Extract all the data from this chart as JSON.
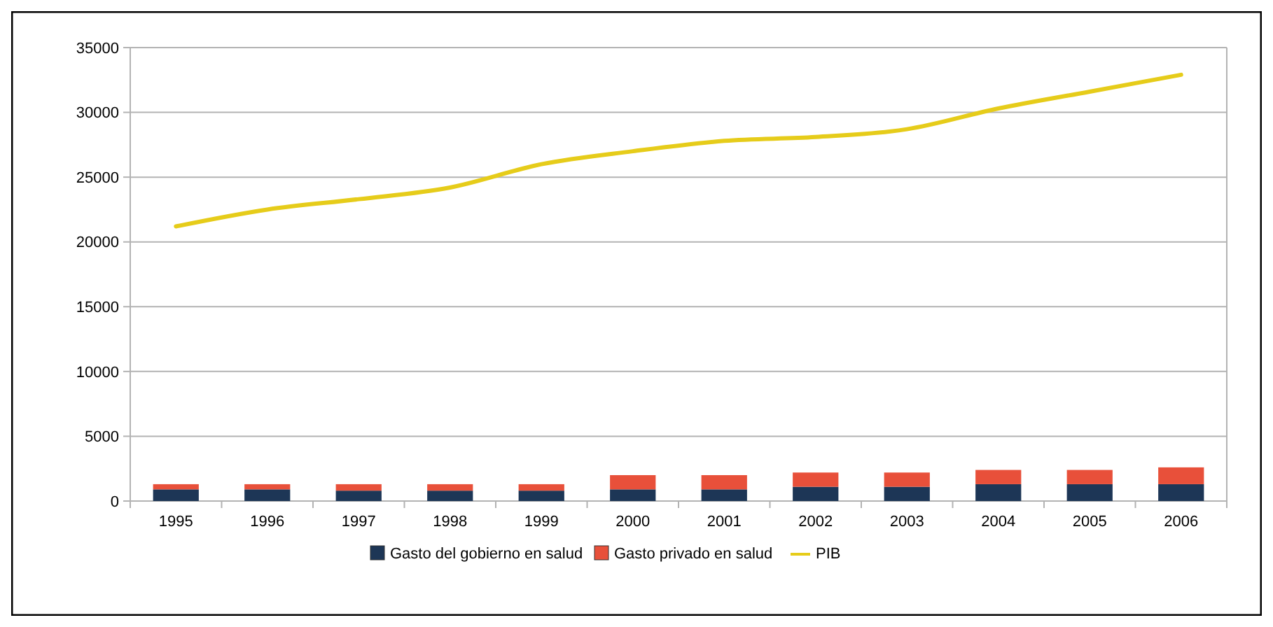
{
  "chart_data": {
    "type": "bar",
    "stacked": true,
    "categories": [
      "1995",
      "1996",
      "1997",
      "1998",
      "1999",
      "2000",
      "2001",
      "2002",
      "2003",
      "2004",
      "2005",
      "2006"
    ],
    "series": [
      {
        "name": "Gasto del gobierno en salud",
        "color": "#1d3656",
        "values": [
          900,
          900,
          800,
          800,
          800,
          900,
          900,
          1100,
          1100,
          1300,
          1300,
          1300
        ]
      },
      {
        "name": "Gasto privado en salud",
        "color": "#e8503a",
        "values": [
          400,
          400,
          500,
          500,
          500,
          1100,
          1100,
          1100,
          1100,
          1100,
          1100,
          1300
        ]
      },
      {
        "name": "PIB",
        "type": "line",
        "color": "#e6cc1a",
        "values": [
          21200,
          22500,
          23300,
          24200,
          26000,
          27000,
          27800,
          28100,
          28700,
          30300,
          31600,
          32900
        ]
      }
    ],
    "ylim": [
      0,
      35000
    ],
    "yticks": [
      0,
      5000,
      10000,
      15000,
      20000,
      25000,
      30000,
      35000
    ],
    "grid": "y",
    "legend": "bottom"
  }
}
